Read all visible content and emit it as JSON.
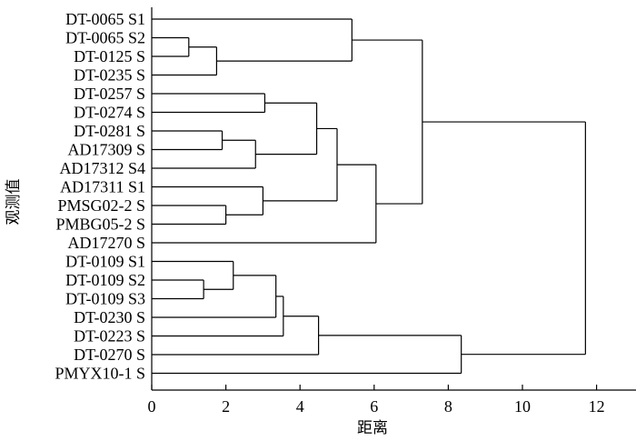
{
  "chart_data": {
    "type": "dendrogram",
    "xlabel": "距离",
    "ylabel": "观测值",
    "xlim": [
      0,
      13
    ],
    "xticks": [
      0,
      2,
      4,
      6,
      8,
      10,
      12
    ],
    "leaves": [
      "DT-0065 S1",
      "DT-0065 S2",
      "DT-0125 S",
      "DT-0235 S",
      "DT-0257 S",
      "DT-0274 S",
      "DT-0281 S",
      "AD17309 S",
      "AD17312 S4",
      "AD17311 S1",
      "PMSG02-2 S",
      "PMBG05-2 S",
      "AD17270 S",
      "DT-0109 S1",
      "DT-0109 S2",
      "DT-0109 S3",
      "DT-0230 S",
      "DT-0223 S",
      "DT-0270 S",
      "PMYX10-1 S"
    ],
    "merges": [
      {
        "id": "m1",
        "a": "L1",
        "b": "L2",
        "height": 1.0
      },
      {
        "id": "m2",
        "a": "m1",
        "b": "L3",
        "height": 1.75
      },
      {
        "id": "m3",
        "a": "L0",
        "b": "m2",
        "height": 5.4
      },
      {
        "id": "m4",
        "a": "L6",
        "b": "L7",
        "height": 1.9
      },
      {
        "id": "m5",
        "a": "m4",
        "b": "L8",
        "height": 2.8
      },
      {
        "id": "m6",
        "a": "L4",
        "b": "L5",
        "height": 3.05
      },
      {
        "id": "m7",
        "a": "m6",
        "b": "m5",
        "height": 4.45
      },
      {
        "id": "m8",
        "a": "L10",
        "b": "L11",
        "height": 2.0
      },
      {
        "id": "m9",
        "a": "L9",
        "b": "m8",
        "height": 3.0
      },
      {
        "id": "m10",
        "a": "m7",
        "b": "m9",
        "height": 5.0
      },
      {
        "id": "m11",
        "a": "m10",
        "b": "L12",
        "height": 6.05
      },
      {
        "id": "m12",
        "a": "m3",
        "b": "m11",
        "height": 7.3
      },
      {
        "id": "m13",
        "a": "L14",
        "b": "L15",
        "height": 1.4
      },
      {
        "id": "m14",
        "a": "L13",
        "b": "m13",
        "height": 2.2
      },
      {
        "id": "m15",
        "a": "m14",
        "b": "L16",
        "height": 3.35
      },
      {
        "id": "m16",
        "a": "m15",
        "b": "L17",
        "height": 3.55
      },
      {
        "id": "m17",
        "a": "m16",
        "b": "L18",
        "height": 4.5
      },
      {
        "id": "m18",
        "a": "m17",
        "b": "L19",
        "height": 8.35
      },
      {
        "id": "m19",
        "a": "m12",
        "b": "m18",
        "height": 11.7
      }
    ]
  }
}
